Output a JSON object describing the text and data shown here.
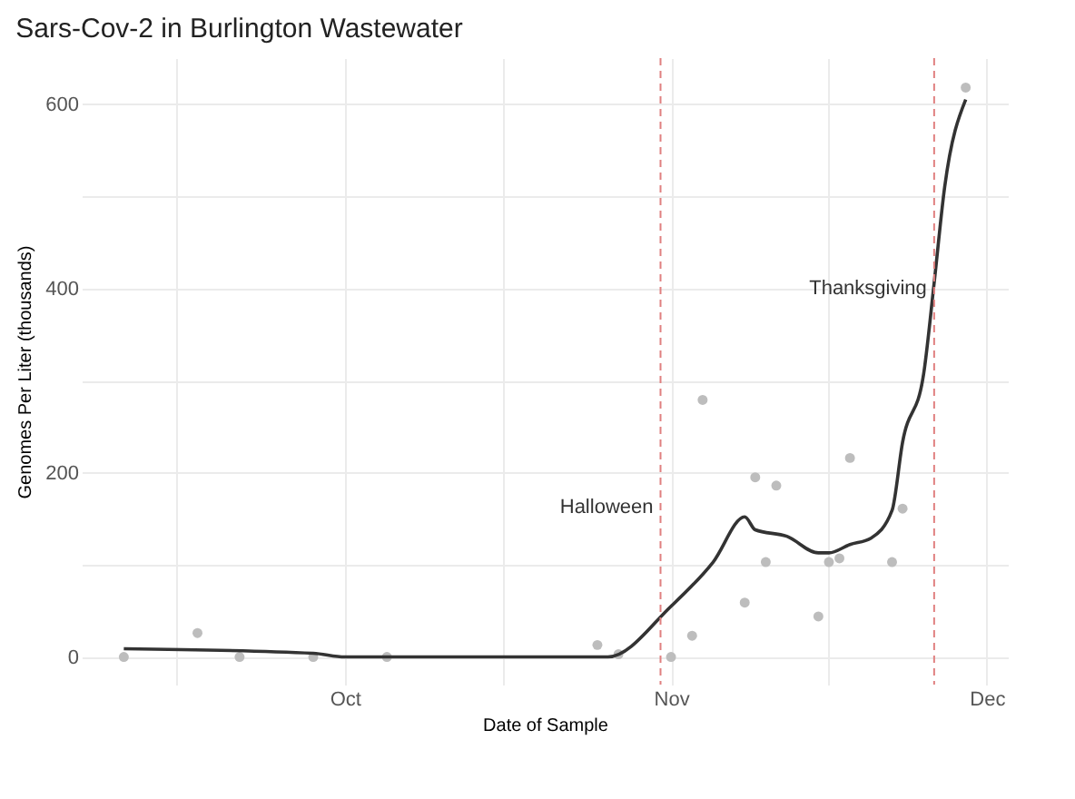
{
  "chart_data": {
    "type": "scatter",
    "title": "Sars-Cov-2 in Burlington Wastewater",
    "xlabel": "Date of Sample",
    "ylabel": "Genomes Per Liter (thousands)",
    "xlim": [
      "--09-06",
      "--12-03"
    ],
    "xticks": [
      {
        "value": "--09-15",
        "label": null
      },
      {
        "value": "--10-01",
        "label": "Oct"
      },
      {
        "value": "--10-16",
        "label": null
      },
      {
        "value": "--11-01",
        "label": "Nov"
      },
      {
        "value": "--11-16",
        "label": null
      },
      {
        "value": "--12-01",
        "label": "Dec"
      }
    ],
    "ylim": [
      -30,
      650
    ],
    "yticks": [
      0,
      {
        "value": 100,
        "label": null
      },
      200,
      {
        "value": 300,
        "label": null
      },
      400,
      {
        "value": 500,
        "label": null
      },
      600
    ],
    "grid": true,
    "series": [
      {
        "color": "#bdbdbd",
        "x": [
          "--09-10",
          "--09-17",
          "--09-21",
          "--09-28",
          "--10-05",
          "--10-25",
          "--10-27",
          "--11-01",
          "--11-03",
          "--11-04",
          "--11-08",
          "--11-09",
          "--11-10",
          "--11-11",
          "--11-15",
          "--11-16",
          "--11-17",
          "--11-18",
          "--11-22",
          "--11-23",
          "--11-29"
        ],
        "values": [
          0,
          26,
          0,
          0,
          0,
          13,
          3,
          0,
          23,
          279,
          59,
          195,
          103,
          186,
          44,
          103,
          107,
          216,
          103,
          161,
          618
        ]
      },
      {
        "type": "line",
        "color": "#333333",
        "x": [
          "--09-10",
          "--09-28",
          "--10-01",
          "--10-26",
          "--11-01",
          "--11-05",
          "--11-08",
          "--11-09",
          "--11-12",
          "--11-15",
          "--11-16",
          "--11-18",
          "--11-20",
          "--11-22",
          "--11-23",
          "--11-25",
          "--11-26",
          "--11-27",
          "--11-29"
        ],
        "values": [
          9,
          4,
          0,
          0,
          55,
          103,
          152,
          138,
          131,
          113,
          113,
          122,
          129,
          159,
          233,
          307,
          406,
          510,
          605
        ]
      }
    ],
    "ref_lines": [
      {
        "axis": "x",
        "value": "--10-31",
        "color": "#e08080",
        "line_style": "dashed"
      },
      {
        "axis": "x",
        "value": "--11-26",
        "color": "#e08080",
        "line_style": "dashed"
      }
    ],
    "annotations": [
      {
        "text": "Halloween",
        "x": "--10-31",
        "y": 162
      },
      {
        "text": "Thanksgiving",
        "x": "--11-26",
        "y": 400
      }
    ]
  }
}
